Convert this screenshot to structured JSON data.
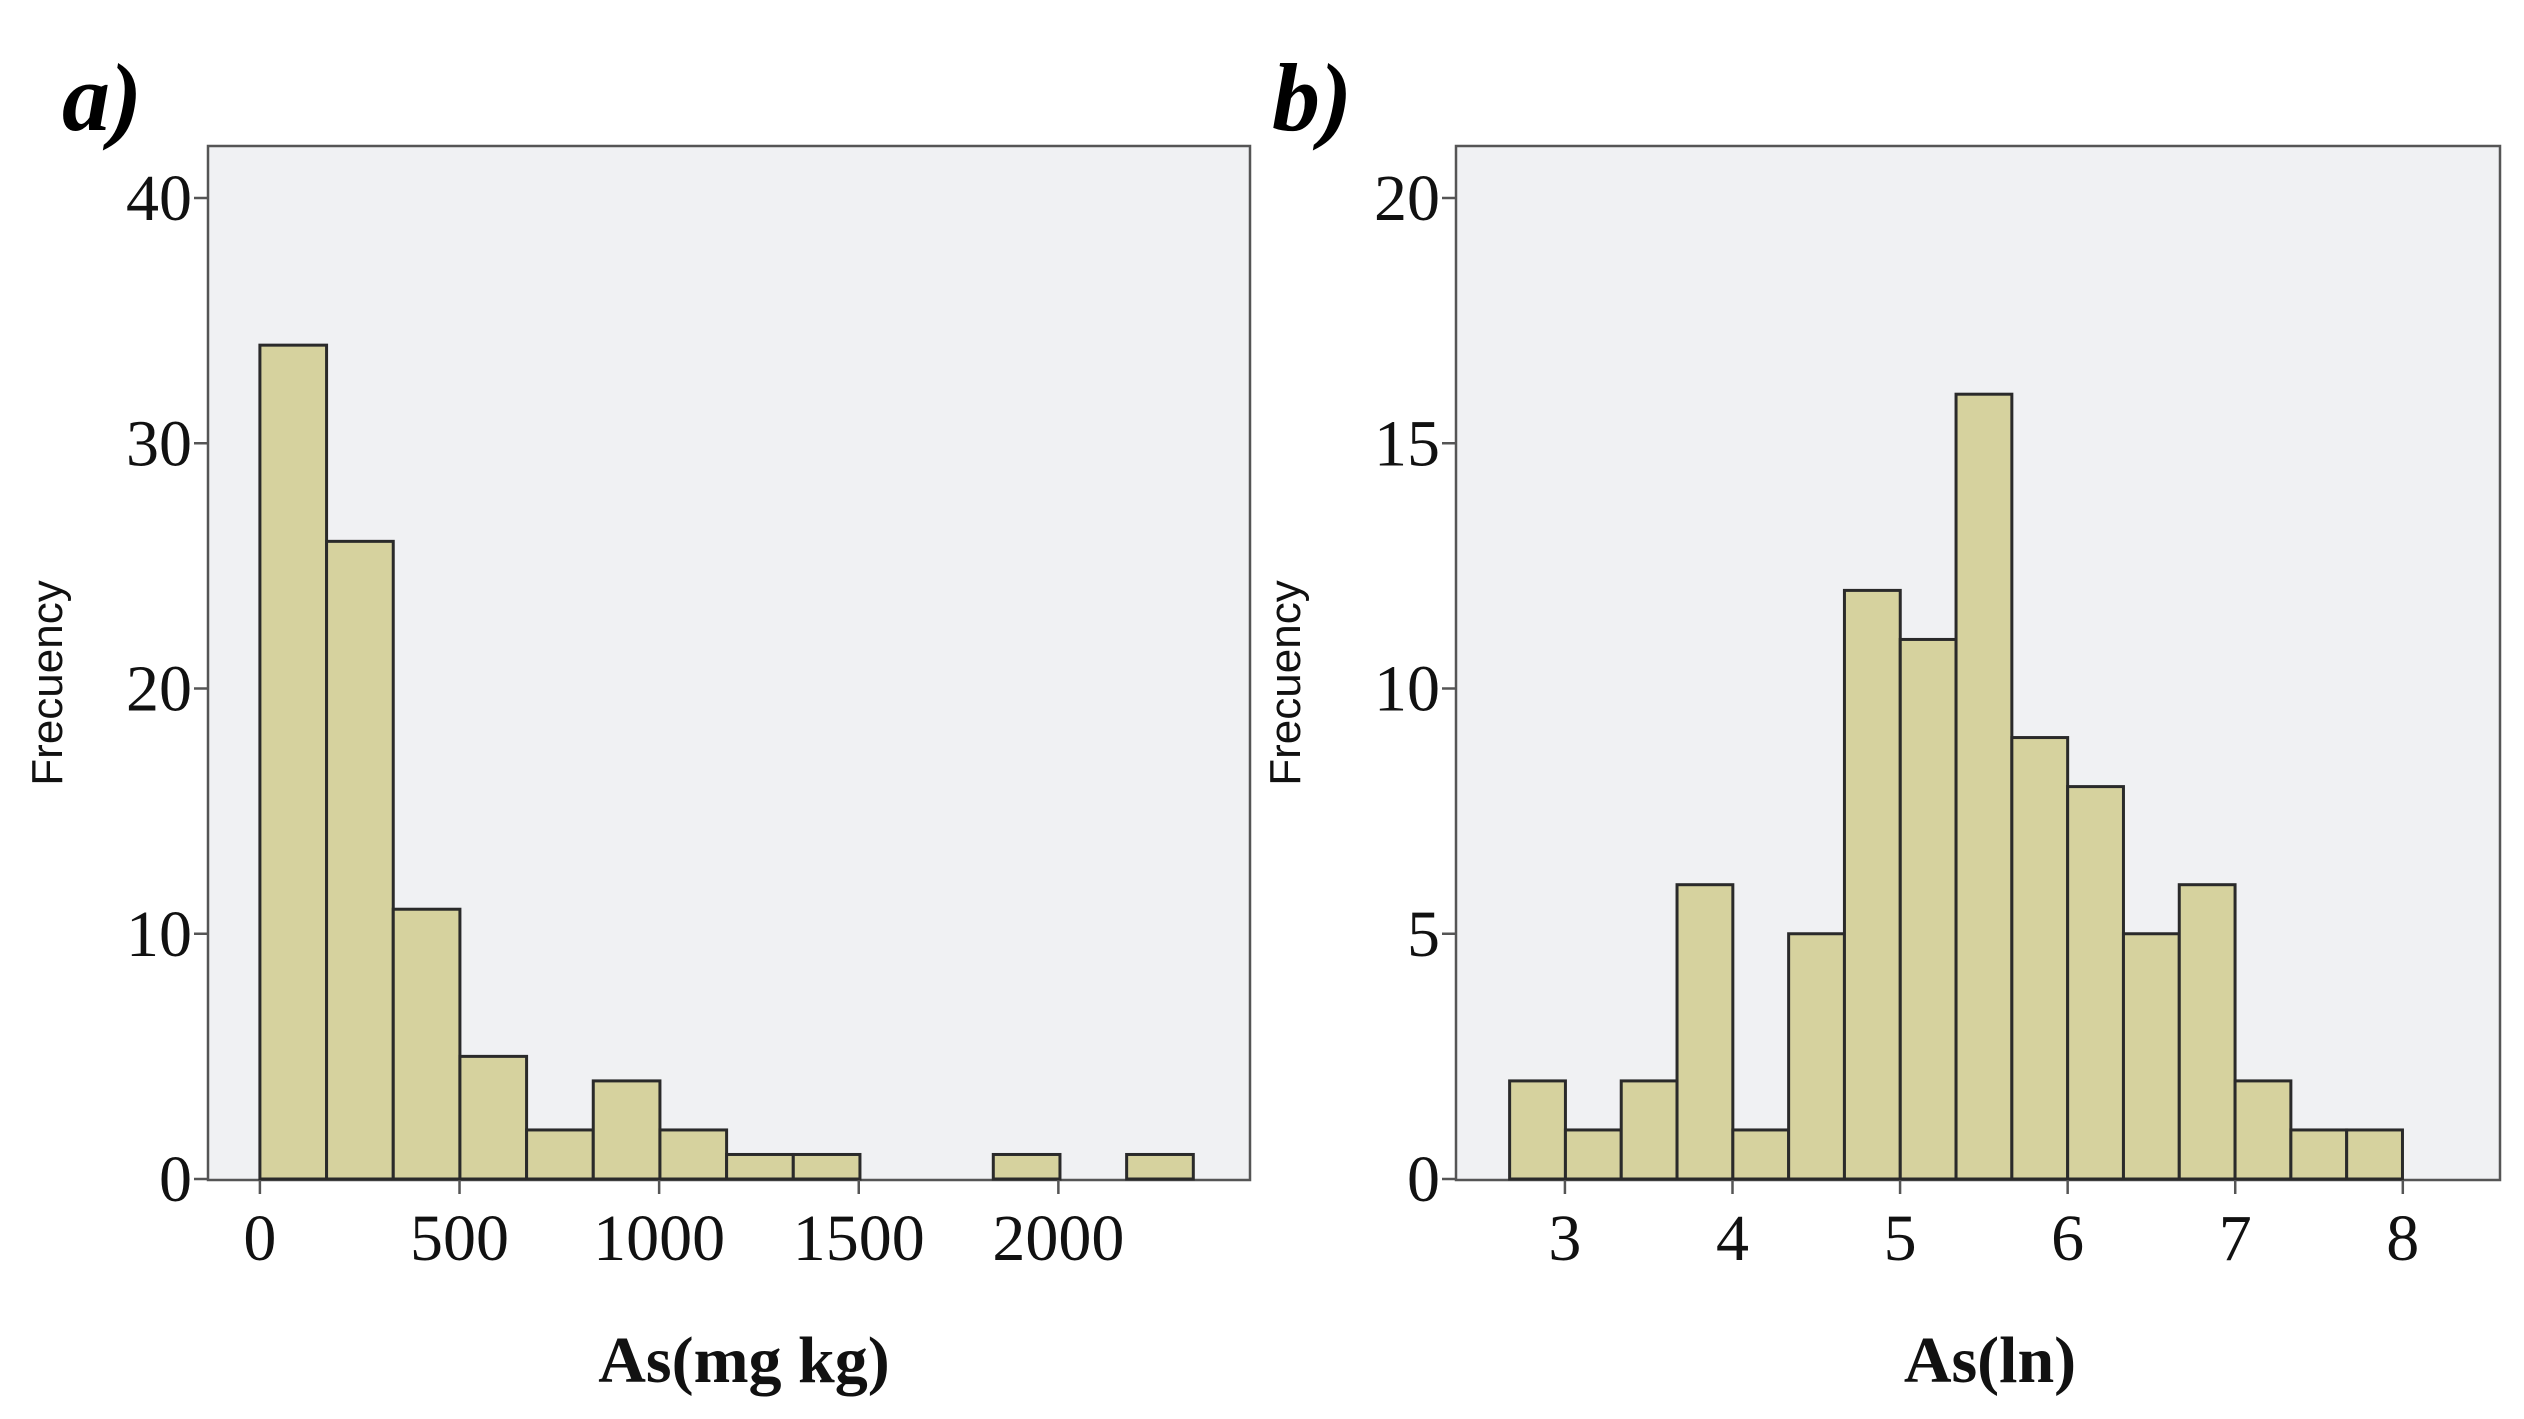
{
  "colors": {
    "bar_fill": "#d6d29e",
    "bar_stroke": "#2a2a2a",
    "plot_background": "#f0f1f3",
    "frame": "#555555"
  },
  "chart_data": [
    {
      "type": "bar",
      "panel_label": "a)",
      "title": "",
      "xlabel": "As(mg kg)",
      "ylabel": "Frecuency",
      "grid": false,
      "xlim": [
        -130,
        2480
      ],
      "ylim": [
        0,
        40
      ],
      "x_ticks": [
        0,
        500,
        1000,
        1500,
        2000
      ],
      "x_tick_labels": [
        "0",
        "500",
        "1000",
        "1500",
        "2000"
      ],
      "y_ticks": [
        0,
        10,
        20,
        30,
        40
      ],
      "y_tick_labels": [
        "0",
        "10",
        "20",
        "30",
        "40"
      ],
      "bin_width": 167,
      "bin_starts": [
        0,
        167,
        334,
        501,
        668,
        835,
        1002,
        1169,
        1336,
        1503,
        1670,
        1837,
        2004,
        2171
      ],
      "values": [
        34,
        26,
        11,
        5,
        2,
        4,
        2,
        1,
        1,
        0,
        0,
        1,
        0,
        1
      ]
    },
    {
      "type": "bar",
      "panel_label": "b)",
      "title": "",
      "xlabel": "As(ln)",
      "ylabel": "Frecuency",
      "grid": false,
      "xlim": [
        2.35,
        8.58
      ],
      "ylim": [
        0,
        20
      ],
      "x_ticks": [
        3,
        4,
        5,
        6,
        7,
        8
      ],
      "x_tick_labels": [
        "3",
        "4",
        "5",
        "6",
        "7",
        "8"
      ],
      "y_ticks": [
        0,
        5,
        10,
        15,
        20
      ],
      "y_tick_labels": [
        "0",
        "5",
        "10",
        "15",
        "20"
      ],
      "bin_width": 0.333,
      "bin_starts": [
        2.67,
        3.003,
        3.336,
        3.669,
        4.002,
        4.335,
        4.668,
        5.001,
        5.334,
        5.667,
        6.0,
        6.333,
        6.666,
        6.999,
        7.332,
        7.665
      ],
      "values": [
        2,
        1,
        2,
        6,
        1,
        5,
        12,
        11,
        16,
        9,
        8,
        5,
        6,
        2,
        1,
        1
      ]
    }
  ]
}
